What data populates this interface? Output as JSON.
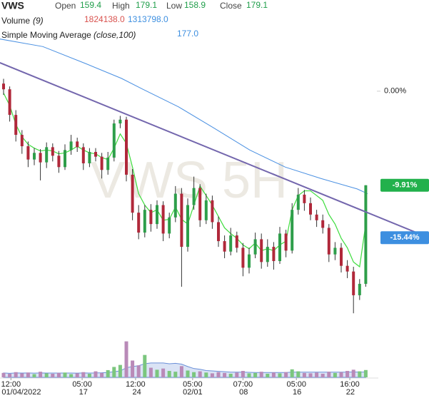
{
  "header": {
    "symbol": "VWS",
    "open_label": "Open",
    "open": "159.4",
    "high_label": "High",
    "high": "179.1",
    "low_label": "Low",
    "low": "158.9",
    "close_label": "Close",
    "close": "179.1",
    "volume_label": "Volume",
    "volume_param": "(9)",
    "volume_value": "1824138.0",
    "volume_ma_value": "1313798.0",
    "sma_label": "Simple Moving Average",
    "sma_param": "(close,100)",
    "sma_value": "177.0"
  },
  "chart_data": {
    "type": "candlestick",
    "watermark": "VWS 5H",
    "open": [
      0.8,
      0.2,
      -2.5,
      -4.6,
      -5.8,
      -7.2,
      -6.5,
      -7.5,
      -5.9,
      -6.8,
      -8.0,
      -6.2,
      -5.3,
      -5.9,
      -7.6,
      -6.4,
      -6.9,
      -8.3,
      -7.0,
      -3.4,
      -3.0,
      -8.8,
      -12.8,
      -14.9,
      -12.5,
      -14.0,
      -12.0,
      -15.0,
      -13.3,
      -10.8,
      -16.4,
      -12.0,
      -10.2,
      -13.6,
      -11.5,
      -13.8,
      -15.8,
      -16.9,
      -15.2,
      -16.5,
      -18.6,
      -17.2,
      -15.6,
      -18.0,
      -16.4,
      -17.9,
      -15.0,
      -16.8,
      -12.5,
      -10.9,
      -11.8,
      -13.0,
      -13.6,
      -14.4,
      -17.2,
      -16.5,
      -18.4,
      -19.0,
      -21.5,
      -20.3
    ],
    "high": [
      1.3,
      0.5,
      -2.0,
      -4.1,
      -5.3,
      -6.0,
      -6.1,
      -5.4,
      -5.5,
      -6.3,
      -5.6,
      -4.6,
      -4.9,
      -5.5,
      -6.0,
      -6.0,
      -6.5,
      -6.4,
      -3.0,
      -2.6,
      -2.7,
      -8.2,
      -12.0,
      -12.0,
      -11.9,
      -11.5,
      -11.6,
      -12.8,
      -10.0,
      -10.2,
      -11.3,
      -9.0,
      -9.8,
      -10.8,
      -11.0,
      -13.2,
      -15.2,
      -14.4,
      -14.8,
      -16.0,
      -16.5,
      -14.9,
      -15.0,
      -15.6,
      -15.9,
      -14.3,
      -14.6,
      -11.8,
      -10.2,
      -10.4,
      -11.2,
      -12.5,
      -13.0,
      -14.0,
      -15.9,
      -16.0,
      -17.8,
      -18.5,
      -19.8,
      -9.91
    ],
    "low": [
      -0.4,
      -3.2,
      -5.3,
      -6.6,
      -8.0,
      -7.8,
      -9.4,
      -8.1,
      -7.4,
      -8.6,
      -8.3,
      -6.7,
      -6.4,
      -8.3,
      -8.0,
      -7.4,
      -9.2,
      -8.8,
      -7.4,
      -3.9,
      -9.5,
      -13.6,
      -15.6,
      -15.4,
      -14.8,
      -14.5,
      -15.8,
      -15.5,
      -13.8,
      -20.6,
      -16.9,
      -12.5,
      -14.3,
      -14.0,
      -14.5,
      -16.4,
      -17.6,
      -17.3,
      -17.0,
      -19.5,
      -19.2,
      -17.6,
      -18.7,
      -18.5,
      -18.8,
      -18.2,
      -17.5,
      -17.1,
      -13.0,
      -12.6,
      -13.6,
      -14.3,
      -15.0,
      -18.0,
      -17.8,
      -19.1,
      -19.7,
      -23.4,
      -22.0,
      -20.6
    ],
    "close": [
      0.2,
      -2.5,
      -4.6,
      -5.8,
      -7.2,
      -6.5,
      -7.5,
      -5.9,
      -6.8,
      -8.0,
      -6.2,
      -5.3,
      -5.9,
      -7.6,
      -6.4,
      -6.9,
      -8.3,
      -7.0,
      -3.4,
      -3.0,
      -8.8,
      -12.8,
      -14.9,
      -12.5,
      -14.0,
      -12.0,
      -15.0,
      -13.3,
      -10.8,
      -16.4,
      -12.0,
      -10.2,
      -13.6,
      -11.5,
      -13.8,
      -15.8,
      -16.9,
      -15.2,
      -16.5,
      -18.6,
      -17.2,
      -15.6,
      -18.0,
      -16.4,
      -17.9,
      -15.0,
      -16.8,
      -12.5,
      -10.9,
      -11.8,
      -13.0,
      -13.6,
      -14.4,
      -17.2,
      -16.5,
      -18.4,
      -19.0,
      -21.5,
      -20.3,
      -9.91
    ],
    "up_color": "#2e9e4a",
    "down_color": "#b0283a",
    "short_ma": {
      "color": "#3ddc3d",
      "values": [
        -0.2,
        -1.5,
        -3.5,
        -4.8,
        -5.6,
        -6.0,
        -6.3,
        -6.2,
        -6.3,
        -6.6,
        -6.5,
        -6.2,
        -5.8,
        -6.2,
        -6.5,
        -6.6,
        -7.0,
        -7.2,
        -6.0,
        -4.5,
        -5.5,
        -8.0,
        -10.8,
        -12.0,
        -12.8,
        -12.5,
        -13.6,
        -13.5,
        -12.2,
        -13.5,
        -14.0,
        -12.0,
        -10.0,
        -11.0,
        -12.0,
        -13.2,
        -14.4,
        -15.0,
        -15.5,
        -16.2,
        -16.6,
        -16.0,
        -16.8,
        -16.6,
        -16.8,
        -16.2,
        -15.8,
        -12.5,
        -11.0,
        -10.5,
        -10.5,
        -11.0,
        -11.5,
        -13.0,
        -14.0,
        -15.5,
        -16.5,
        -18.0,
        -18.5,
        -14.0
      ]
    },
    "sma": {
      "color": "#4a90e2",
      "x": [
        -0.6,
        6.4,
        13.4,
        19.2,
        22.7,
        28.5,
        34.3,
        40.1,
        45.9,
        51.7,
        57.6,
        59.3
      ],
      "values": [
        5.5,
        4.7,
        2.9,
        1.35,
        0.2,
        -1.65,
        -3.9,
        -6.2,
        -8.0,
        -9.2,
        -10.3,
        -10.8
      ]
    },
    "trendline": {
      "color": "#7366ad",
      "x": [
        -0.6,
        69.3
      ],
      "values": [
        3.0,
        -15.44
      ]
    },
    "ylim": [
      -25,
      6
    ],
    "yticks": [
      {
        "value": 0,
        "label": "0.00%"
      }
    ],
    "last_labels": [
      {
        "value": -9.91,
        "label": "-9.91%",
        "color": "#22b14c"
      },
      {
        "value": -15.44,
        "label": "-15.44%",
        "color": "#3d8fe0"
      }
    ],
    "volume": [
      1100000,
      900000,
      1300000,
      1000000,
      1200000,
      800000,
      1400000,
      1000000,
      900000,
      1100000,
      1200000,
      800000,
      1000000,
      1300000,
      900000,
      1500000,
      1100000,
      1800000,
      2600000,
      3100000,
      9000000,
      4200000,
      3000000,
      5600000,
      2400000,
      1900000,
      2200000,
      1600000,
      1400000,
      2800000,
      1700000,
      1300000,
      1500000,
      1200000,
      1000000,
      1300000,
      1100000,
      900000,
      1200000,
      1600000,
      1000000,
      1100000,
      1400000,
      900000,
      1200000,
      1000000,
      1300000,
      2000000,
      1500000,
      1100000,
      1000000,
      1200000,
      900000,
      1400000,
      1100000,
      1300000,
      1600000,
      1900000,
      1500000,
      1824138
    ],
    "volume_ma": [
      1100000,
      1000000,
      1100000,
      1080000,
      1100000,
      1050000,
      1100000,
      1080000,
      1080000,
      1070000,
      1080000,
      1070000,
      1060000,
      1100000,
      1070000,
      1100000,
      1130000,
      1200000,
      1400000,
      1600000,
      2400000,
      2700000,
      2900000,
      3400000,
      3600000,
      3600000,
      3600000,
      3400000,
      3500000,
      3300000,
      2700000,
      2200000,
      2000000,
      1700000,
      1600000,
      1500000,
      1400000,
      1300000,
      1300000,
      1300000,
      1250000,
      1200000,
      1200000,
      1200000,
      1200000,
      1200000,
      1200000,
      1300000,
      1300000,
      1300000,
      1300000,
      1300000,
      1300000,
      1300000,
      1300000,
      1300000,
      1300000,
      1350000,
      1300000,
      1313798
    ],
    "volume_lim": [
      0,
      10000000
    ],
    "volume_up_color": "#7bc67e",
    "volume_down_color": "#b98ab8",
    "volume_ma_color": "#6a8fd8",
    "xticks": [
      {
        "value": 1.2,
        "label": "12:00"
      },
      {
        "value": 12.8,
        "label": "05:00"
      },
      {
        "value": 21.5,
        "label": "12:00"
      },
      {
        "value": 30.8,
        "label": "05:00"
      },
      {
        "value": 39.0,
        "label": "07:00"
      },
      {
        "value": 47.7,
        "label": "05:00"
      },
      {
        "value": 56.4,
        "label": "16:00"
      }
    ],
    "xticks2": [
      {
        "value": 2.9,
        "label": "01/04/2022"
      },
      {
        "value": 13.0,
        "label": "17"
      },
      {
        "value": 21.7,
        "label": "24"
      },
      {
        "value": 30.8,
        "label": "02/01"
      },
      {
        "value": 39.1,
        "label": "08"
      },
      {
        "value": 47.8,
        "label": "16"
      },
      {
        "value": 56.5,
        "label": "22"
      }
    ]
  }
}
